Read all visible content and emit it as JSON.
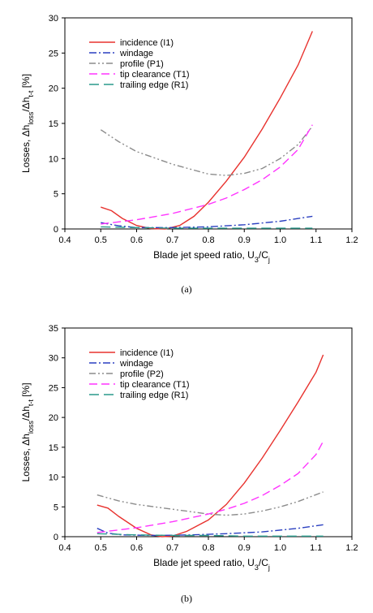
{
  "chart_data": [
    {
      "type": "line",
      "caption": "(a)",
      "xlabel": "Blade jet speed ratio, U3/Cj",
      "ylabel": "Losses, Δhloss/Δht-t [%]",
      "xlim": [
        0.4,
        1.2
      ],
      "ylim": [
        0,
        30
      ],
      "xticks": [
        "0.4",
        "0.5",
        "0.6",
        "0.7",
        "0.8",
        "0.9",
        "1.0",
        "1.1",
        "1.2"
      ],
      "yticks": [
        "0",
        "5",
        "10",
        "15",
        "20",
        "25",
        "30"
      ],
      "legend_position": "top-left",
      "grid": false,
      "series": [
        {
          "name": "incidence (I1)",
          "color": "#e8322e",
          "dash": "solid",
          "points": [
            [
              0.5,
              3.1
            ],
            [
              0.53,
              2.6
            ],
            [
              0.56,
              1.5
            ],
            [
              0.6,
              0.5
            ],
            [
              0.64,
              0.05
            ],
            [
              0.68,
              0.0
            ],
            [
              0.72,
              0.5
            ],
            [
              0.76,
              1.8
            ],
            [
              0.8,
              3.8
            ],
            [
              0.85,
              6.8
            ],
            [
              0.9,
              10.2
            ],
            [
              0.95,
              14.2
            ],
            [
              1.0,
              18.6
            ],
            [
              1.05,
              23.3
            ],
            [
              1.09,
              28.1
            ]
          ]
        },
        {
          "name": "windage",
          "color": "#2a3fc0",
          "dash": "dashdot",
          "points": [
            [
              0.5,
              0.9
            ],
            [
              0.55,
              0.45
            ],
            [
              0.6,
              0.2
            ],
            [
              0.7,
              0.2
            ],
            [
              0.8,
              0.3
            ],
            [
              0.9,
              0.6
            ],
            [
              1.0,
              1.1
            ],
            [
              1.09,
              1.8
            ]
          ]
        },
        {
          "name": "profile (P1)",
          "color": "#8c8c8c",
          "dash": "dashdotdot",
          "points": [
            [
              0.5,
              14.1
            ],
            [
              0.55,
              12.4
            ],
            [
              0.6,
              11.0
            ],
            [
              0.7,
              9.2
            ],
            [
              0.8,
              7.8
            ],
            [
              0.85,
              7.6
            ],
            [
              0.9,
              7.9
            ],
            [
              0.95,
              8.6
            ],
            [
              1.0,
              10.0
            ],
            [
              1.05,
              12.0
            ],
            [
              1.09,
              14.6
            ]
          ]
        },
        {
          "name": "tip clearance (T1)",
          "color": "#ff33ff",
          "dash": "dash",
          "points": [
            [
              0.5,
              0.7
            ],
            [
              0.6,
              1.3
            ],
            [
              0.7,
              2.2
            ],
            [
              0.8,
              3.5
            ],
            [
              0.85,
              4.4
            ],
            [
              0.9,
              5.6
            ],
            [
              0.95,
              7.0
            ],
            [
              1.0,
              8.8
            ],
            [
              1.05,
              11.3
            ],
            [
              1.09,
              14.8
            ]
          ]
        },
        {
          "name": "trailing edge (R1)",
          "color": "#2a9a8c",
          "dash": "longdash",
          "points": [
            [
              0.5,
              0.3
            ],
            [
              0.6,
              0.2
            ],
            [
              0.7,
              0.1
            ],
            [
              0.8,
              0.1
            ],
            [
              0.9,
              0.1
            ],
            [
              1.0,
              0.1
            ],
            [
              1.09,
              0.1
            ]
          ]
        }
      ]
    },
    {
      "type": "line",
      "caption": "(b)",
      "xlabel": "Blade jet speed ratio, U3/Cj",
      "ylabel": "Losses, Δhloss/Δht-t [%]",
      "xlim": [
        0.4,
        1.2
      ],
      "ylim": [
        0,
        35
      ],
      "xticks": [
        "0.4",
        "0.5",
        "0.6",
        "0.7",
        "0.8",
        "0.9",
        "1.0",
        "1.1",
        "1.2"
      ],
      "yticks": [
        "0",
        "5",
        "10",
        "15",
        "20",
        "25",
        "30",
        "35"
      ],
      "legend_position": "top-left",
      "grid": false,
      "series": [
        {
          "name": "incidence (I1)",
          "color": "#e8322e",
          "dash": "solid",
          "points": [
            [
              0.49,
              5.3
            ],
            [
              0.52,
              4.8
            ],
            [
              0.55,
              3.4
            ],
            [
              0.6,
              1.4
            ],
            [
              0.64,
              0.3
            ],
            [
              0.67,
              0.0
            ],
            [
              0.7,
              0.1
            ],
            [
              0.74,
              0.9
            ],
            [
              0.8,
              2.8
            ],
            [
              0.85,
              5.4
            ],
            [
              0.9,
              9.0
            ],
            [
              0.95,
              13.2
            ],
            [
              1.0,
              17.8
            ],
            [
              1.05,
              22.6
            ],
            [
              1.1,
              27.6
            ],
            [
              1.12,
              30.5
            ]
          ]
        },
        {
          "name": "windage",
          "color": "#2a3fc0",
          "dash": "dashdot",
          "points": [
            [
              0.49,
              1.4
            ],
            [
              0.52,
              0.6
            ],
            [
              0.56,
              0.3
            ],
            [
              0.65,
              0.2
            ],
            [
              0.75,
              0.3
            ],
            [
              0.85,
              0.5
            ],
            [
              0.95,
              0.8
            ],
            [
              1.05,
              1.4
            ],
            [
              1.12,
              2.0
            ]
          ]
        },
        {
          "name": "profile (P2)",
          "color": "#8c8c8c",
          "dash": "dashdotdot",
          "points": [
            [
              0.49,
              7.0
            ],
            [
              0.55,
              6.0
            ],
            [
              0.6,
              5.4
            ],
            [
              0.7,
              4.6
            ],
            [
              0.8,
              3.8
            ],
            [
              0.85,
              3.6
            ],
            [
              0.9,
              3.8
            ],
            [
              0.95,
              4.3
            ],
            [
              1.0,
              5.0
            ],
            [
              1.05,
              5.9
            ],
            [
              1.12,
              7.5
            ]
          ]
        },
        {
          "name": "tip clearance (T1)",
          "color": "#ff33ff",
          "dash": "dash",
          "points": [
            [
              0.49,
              0.7
            ],
            [
              0.6,
              1.5
            ],
            [
              0.7,
              2.5
            ],
            [
              0.8,
              3.8
            ],
            [
              0.85,
              4.6
            ],
            [
              0.9,
              5.6
            ],
            [
              0.95,
              6.9
            ],
            [
              1.0,
              8.6
            ],
            [
              1.05,
              10.6
            ],
            [
              1.1,
              13.8
            ],
            [
              1.12,
              16.0
            ]
          ]
        },
        {
          "name": "trailing edge (R1)",
          "color": "#2a9a8c",
          "dash": "longdash",
          "points": [
            [
              0.49,
              0.5
            ],
            [
              0.6,
              0.3
            ],
            [
              0.7,
              0.2
            ],
            [
              0.8,
              0.2
            ],
            [
              0.9,
              0.1
            ],
            [
              1.0,
              0.1
            ],
            [
              1.12,
              0.1
            ]
          ]
        }
      ]
    }
  ]
}
